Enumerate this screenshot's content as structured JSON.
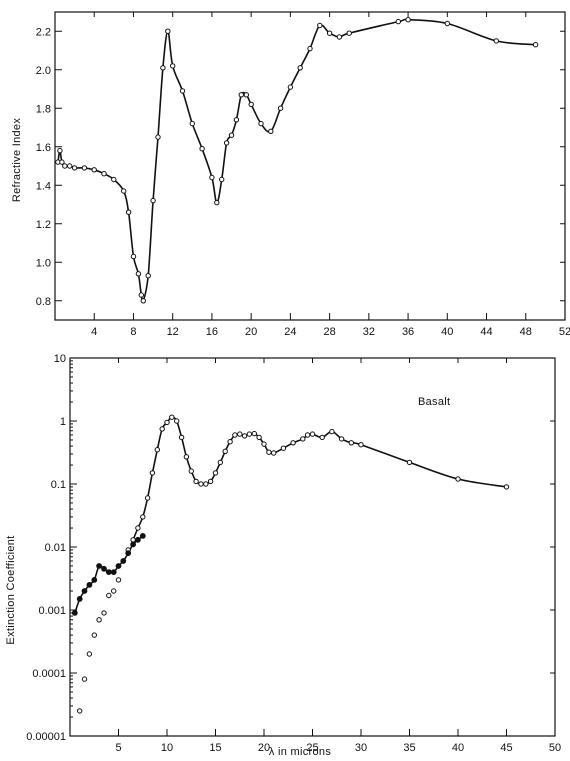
{
  "chart_data": [
    {
      "type": "line",
      "ylabel": "Refractive Index",
      "xlim": [
        0,
        52
      ],
      "ylim": [
        0.7,
        2.3
      ],
      "xticks": [
        4,
        8,
        12,
        16,
        20,
        24,
        28,
        32,
        36,
        40,
        44,
        48,
        52
      ],
      "yticks": [
        0.8,
        1.0,
        1.2,
        1.4,
        1.6,
        1.8,
        2.0,
        2.2
      ],
      "ytick_labels": [
        "0.8",
        "1.0",
        "1.2",
        "1.4",
        "1.6",
        "1.8",
        "2.0",
        "2.2"
      ],
      "series": [
        {
          "marker": "open-circle",
          "x": [
            0.3,
            0.5,
            0.7,
            1.0,
            1.5,
            2.0,
            3.0,
            4.0,
            5.0,
            6.0,
            7.0,
            7.5,
            8.0,
            8.5,
            8.8,
            9.0,
            9.5,
            10.0,
            10.5,
            11.0,
            11.5,
            12.0,
            13.0,
            14.0,
            15.0,
            16.0,
            16.5,
            17.0,
            17.5,
            18.0,
            18.5,
            19.0,
            19.5,
            20.0,
            21.0,
            22.0,
            23.0,
            24.0,
            25.0,
            26.0,
            27.0,
            28.0,
            29.0,
            30.0,
            35.0,
            36.0,
            40.0,
            45.0,
            49.0
          ],
          "y": [
            1.52,
            1.58,
            1.52,
            1.5,
            1.5,
            1.49,
            1.49,
            1.48,
            1.46,
            1.43,
            1.37,
            1.26,
            1.03,
            0.94,
            0.83,
            0.8,
            0.93,
            1.32,
            1.65,
            2.01,
            2.2,
            2.02,
            1.89,
            1.72,
            1.59,
            1.44,
            1.31,
            1.43,
            1.62,
            1.66,
            1.74,
            1.87,
            1.87,
            1.82,
            1.72,
            1.68,
            1.8,
            1.91,
            2.01,
            2.11,
            2.23,
            2.19,
            2.17,
            2.19,
            2.25,
            2.26,
            2.24,
            2.15,
            2.13
          ]
        }
      ]
    },
    {
      "type": "line",
      "yscale": "log",
      "title": "Basalt",
      "xlabel": "λ  in microns",
      "ylabel": "Extinction Coefficient",
      "xlim": [
        0,
        50
      ],
      "ylim": [
        1e-05,
        10
      ],
      "xticks": [
        5,
        10,
        15,
        20,
        25,
        30,
        35,
        40,
        45,
        50
      ],
      "yticks": [
        1e-05,
        0.0001,
        0.001,
        0.01,
        0.1,
        1,
        10
      ],
      "ytick_labels": [
        "0.00001",
        "0.0001",
        "0.001",
        "0.01",
        "0.1",
        "1",
        "10"
      ],
      "series": [
        {
          "marker": "open-circle",
          "x": [
            1.0,
            1.5,
            2.0,
            2.5,
            3.0,
            3.5,
            4.0,
            4.5,
            5.0,
            5.5,
            6.0,
            6.5,
            7.0,
            7.5,
            8.0,
            8.5,
            9.0,
            9.5,
            10.0,
            10.5,
            11.0,
            11.5,
            12.0,
            12.5,
            13.0,
            13.5,
            14.0,
            14.5,
            15.0,
            15.5,
            16.0,
            16.5,
            17.0,
            17.5,
            18.0,
            18.5,
            19.0,
            19.5,
            20.0,
            20.5,
            21.0,
            22.0,
            23.0,
            24.0,
            24.5,
            25.0,
            26.0,
            27.0,
            28.0,
            29.0,
            30.0,
            35.0,
            40.0,
            45.0
          ],
          "y": [
            2.5e-05,
            8e-05,
            0.0002,
            0.0004,
            0.0007,
            0.0009,
            0.0017,
            0.002,
            0.003,
            0.006,
            0.009,
            0.013,
            0.02,
            0.03,
            0.06,
            0.15,
            0.35,
            0.75,
            0.95,
            1.15,
            1.0,
            0.55,
            0.27,
            0.16,
            0.11,
            0.1,
            0.1,
            0.11,
            0.15,
            0.22,
            0.33,
            0.47,
            0.6,
            0.62,
            0.58,
            0.62,
            0.63,
            0.55,
            0.43,
            0.32,
            0.31,
            0.37,
            0.45,
            0.52,
            0.6,
            0.62,
            0.55,
            0.68,
            0.52,
            0.45,
            0.42,
            0.22,
            0.12,
            0.09
          ]
        },
        {
          "marker": "filled-circle",
          "x": [
            0.5,
            1.0,
            1.5,
            2.0,
            2.5,
            3.0,
            3.5,
            4.0,
            4.5,
            5.0,
            5.5,
            6.0,
            6.5,
            7.0,
            7.5
          ],
          "y": [
            0.0009,
            0.0015,
            0.002,
            0.0025,
            0.003,
            0.005,
            0.0045,
            0.004,
            0.004,
            0.005,
            0.006,
            0.008,
            0.011,
            0.013,
            0.015
          ]
        }
      ]
    }
  ]
}
